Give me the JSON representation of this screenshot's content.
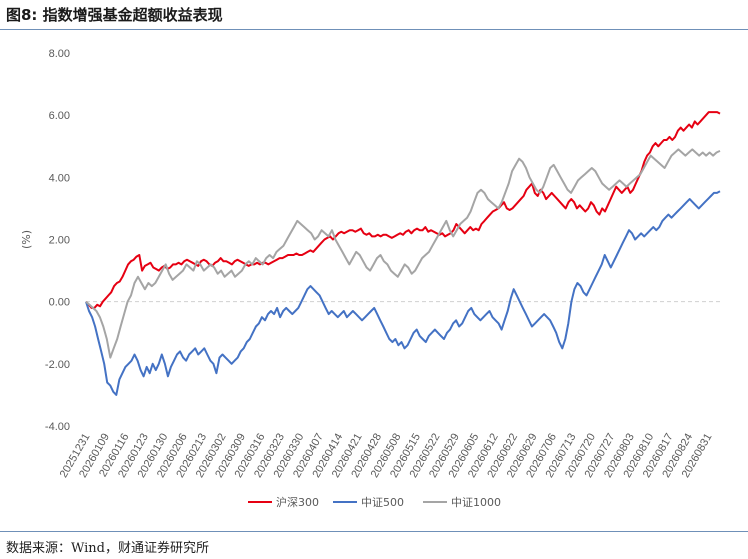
{
  "figure": {
    "title": "图8: 指数增强基金超额收益表现",
    "source": "数据来源：Wind，财通证券研究所"
  },
  "chart_data": {
    "type": "line",
    "ylabel": "(%)",
    "ylim": [
      -4,
      8
    ],
    "yticks": [
      "8.00",
      "6.00",
      "4.00",
      "2.00",
      "0.00",
      "-2.00",
      "-4.00"
    ],
    "ytick_values": [
      8,
      6,
      4,
      2,
      0,
      -2,
      -4
    ],
    "x_tick_labels": [
      "20251231",
      "20260109",
      "20260116",
      "20260123",
      "20260130",
      "20260206",
      "20260213",
      "20260302",
      "20260309",
      "20260316",
      "20260323",
      "20260330",
      "20260407",
      "20260414",
      "20260421",
      "20260428",
      "20260508",
      "20260515",
      "20260522",
      "20260529",
      "20260605",
      "20260612",
      "20260622",
      "20260629",
      "20260706",
      "20260713",
      "20260720",
      "20260727",
      "20260803",
      "20260810",
      "20260817",
      "20260824",
      "20260831"
    ],
    "grid": false,
    "zero_line": "dashed",
    "legend_position": "bottom",
    "series": [
      {
        "name": "沪深300",
        "color": "#e60012",
        "values": [
          0,
          -0.1,
          -0.2,
          -0.2,
          -0.1,
          -0.15,
          0,
          0.1,
          0.2,
          0.3,
          0.5,
          0.6,
          0.65,
          0.8,
          1.0,
          1.2,
          1.3,
          1.35,
          1.45,
          1.5,
          1.0,
          1.15,
          1.2,
          1.25,
          1.1,
          1.05,
          1.0,
          1.1,
          1.15,
          1.05,
          1.1,
          1.2,
          1.2,
          1.25,
          1.2,
          1.3,
          1.35,
          1.3,
          1.25,
          1.2,
          1.15,
          1.3,
          1.35,
          1.3,
          1.2,
          1.15,
          1.25,
          1.3,
          1.4,
          1.3,
          1.3,
          1.25,
          1.2,
          1.3,
          1.35,
          1.3,
          1.25,
          1.2,
          1.15,
          1.2,
          1.2,
          1.25,
          1.2,
          1.25,
          1.25,
          1.2,
          1.25,
          1.3,
          1.35,
          1.4,
          1.4,
          1.45,
          1.5,
          1.5,
          1.5,
          1.55,
          1.5,
          1.5,
          1.55,
          1.6,
          1.65,
          1.6,
          1.7,
          1.8,
          1.9,
          2.0,
          2.05,
          2.1,
          2.0,
          2.1,
          2.2,
          2.25,
          2.2,
          2.25,
          2.3,
          2.3,
          2.25,
          2.3,
          2.35,
          2.2,
          2.15,
          2.2,
          2.1,
          2.1,
          2.15,
          2.1,
          2.15,
          2.15,
          2.1,
          2.05,
          2.1,
          2.15,
          2.2,
          2.15,
          2.25,
          2.3,
          2.2,
          2.3,
          2.35,
          2.3,
          2.3,
          2.4,
          2.25,
          2.3,
          2.25,
          2.2,
          2.15,
          2.2,
          2.1,
          2.15,
          2.2,
          2.3,
          2.5,
          2.4,
          2.3,
          2.2,
          2.3,
          2.4,
          2.3,
          2.35,
          2.3,
          2.5,
          2.6,
          2.7,
          2.8,
          2.9,
          2.95,
          3.0,
          3.1,
          3.2,
          3.0,
          2.95,
          3.0,
          3.1,
          3.2,
          3.3,
          3.4,
          3.6,
          3.7,
          3.8,
          3.5,
          3.4,
          3.6,
          3.5,
          3.3,
          3.4,
          3.5,
          3.4,
          3.3,
          3.2,
          3.1,
          3.0,
          3.2,
          3.3,
          3.2,
          3.0,
          3.1,
          3.0,
          2.9,
          3.0,
          3.2,
          3.1,
          2.9,
          2.8,
          3.0,
          2.9,
          3.1,
          3.3,
          3.5,
          3.7,
          3.6,
          3.5,
          3.6,
          3.7,
          3.5,
          3.6,
          3.8,
          4.0,
          4.2,
          4.5,
          4.7,
          4.8,
          5.0,
          5.1,
          5.0,
          5.1,
          5.2,
          5.2,
          5.3,
          5.2,
          5.3,
          5.5,
          5.6,
          5.5,
          5.6,
          5.7,
          5.6,
          5.8,
          5.7,
          5.8,
          5.9,
          6.0,
          6.1,
          6.1,
          6.1,
          6.1,
          6.05
        ],
        "x_end": 224
      },
      {
        "name": "中证500",
        "color": "#4472c4",
        "values": [
          0,
          -0.3,
          -0.5,
          -0.8,
          -1.2,
          -1.6,
          -2.0,
          -2.6,
          -2.7,
          -2.9,
          -3.0,
          -2.5,
          -2.3,
          -2.1,
          -2.0,
          -1.9,
          -1.7,
          -1.9,
          -2.2,
          -2.4,
          -2.1,
          -2.3,
          -2.0,
          -2.2,
          -2.0,
          -1.7,
          -2.0,
          -2.4,
          -2.1,
          -1.9,
          -1.7,
          -1.6,
          -1.8,
          -1.9,
          -1.7,
          -1.6,
          -1.5,
          -1.7,
          -1.6,
          -1.5,
          -1.7,
          -1.9,
          -2.0,
          -2.3,
          -1.8,
          -1.7,
          -1.8,
          -1.9,
          -2.0,
          -1.9,
          -1.8,
          -1.6,
          -1.5,
          -1.3,
          -1.2,
          -1.0,
          -0.8,
          -0.7,
          -0.5,
          -0.6,
          -0.4,
          -0.3,
          -0.4,
          -0.2,
          -0.5,
          -0.3,
          -0.2,
          -0.3,
          -0.4,
          -0.3,
          -0.2,
          0,
          0.2,
          0.4,
          0.5,
          0.4,
          0.3,
          0.2,
          0,
          -0.2,
          -0.4,
          -0.3,
          -0.4,
          -0.5,
          -0.4,
          -0.3,
          -0.5,
          -0.4,
          -0.3,
          -0.4,
          -0.5,
          -0.6,
          -0.5,
          -0.4,
          -0.3,
          -0.2,
          -0.4,
          -0.6,
          -0.8,
          -1.0,
          -1.2,
          -1.3,
          -1.2,
          -1.4,
          -1.3,
          -1.5,
          -1.4,
          -1.2,
          -1.0,
          -0.9,
          -1.1,
          -1.2,
          -1.3,
          -1.1,
          -1.0,
          -0.9,
          -1.0,
          -1.1,
          -1.2,
          -1.0,
          -0.9,
          -0.7,
          -0.6,
          -0.8,
          -0.7,
          -0.5,
          -0.3,
          -0.2,
          -0.4,
          -0.5,
          -0.6,
          -0.5,
          -0.4,
          -0.3,
          -0.5,
          -0.6,
          -0.7,
          -0.9,
          -0.6,
          -0.3,
          0.1,
          0.4,
          0.2,
          0,
          -0.2,
          -0.4,
          -0.6,
          -0.8,
          -0.7,
          -0.6,
          -0.5,
          -0.4,
          -0.5,
          -0.6,
          -0.8,
          -1.0,
          -1.3,
          -1.5,
          -1.2,
          -0.7,
          0,
          0.4,
          0.6,
          0.5,
          0.3,
          0.2,
          0.4,
          0.6,
          0.8,
          1.0,
          1.2,
          1.5,
          1.3,
          1.1,
          1.3,
          1.5,
          1.7,
          1.9,
          2.1,
          2.3,
          2.2,
          2.0,
          2.1,
          2.2,
          2.1,
          2.2,
          2.3,
          2.4,
          2.3,
          2.4,
          2.6,
          2.7,
          2.8,
          2.7,
          2.8,
          2.9,
          3.0,
          3.1,
          3.2,
          3.3,
          3.2,
          3.1,
          3.0,
          3.1,
          3.2,
          3.3,
          3.4,
          3.5,
          3.5,
          3.55
        ],
        "x_end": 224
      },
      {
        "name": "中证1000",
        "color": "#a5a5a5",
        "values": [
          0,
          -0.1,
          -0.2,
          -0.3,
          -0.5,
          -0.8,
          -1.2,
          -1.8,
          -1.5,
          -1.2,
          -0.8,
          -0.4,
          0,
          0.2,
          0.6,
          0.8,
          0.6,
          0.4,
          0.6,
          0.5,
          0.6,
          0.8,
          1.0,
          1.2,
          0.9,
          0.7,
          0.8,
          0.9,
          1.0,
          1.2,
          1.1,
          1.0,
          1.3,
          1.2,
          1.0,
          1.1,
          1.2,
          1.1,
          0.9,
          1.0,
          0.8,
          0.9,
          1.0,
          0.8,
          0.9,
          1.0,
          1.2,
          1.3,
          1.2,
          1.4,
          1.3,
          1.2,
          1.4,
          1.5,
          1.4,
          1.6,
          1.7,
          1.8,
          2.0,
          2.2,
          2.4,
          2.6,
          2.5,
          2.4,
          2.3,
          2.2,
          2.0,
          2.1,
          2.3,
          2.2,
          2.1,
          2.3,
          2.0,
          1.8,
          1.6,
          1.4,
          1.2,
          1.4,
          1.6,
          1.5,
          1.3,
          1.1,
          1.0,
          1.2,
          1.4,
          1.5,
          1.3,
          1.2,
          1.0,
          0.9,
          0.8,
          1.0,
          1.2,
          1.1,
          0.9,
          1.0,
          1.2,
          1.4,
          1.5,
          1.6,
          1.8,
          2.0,
          2.2,
          2.4,
          2.6,
          2.3,
          2.1,
          2.3,
          2.5,
          2.6,
          2.7,
          2.9,
          3.2,
          3.5,
          3.6,
          3.5,
          3.3,
          3.2,
          3.1,
          3.0,
          3.2,
          3.5,
          3.8,
          4.2,
          4.4,
          4.6,
          4.5,
          4.3,
          4.0,
          3.8,
          3.6,
          3.5,
          3.7,
          4.0,
          4.3,
          4.4,
          4.2,
          4.0,
          3.8,
          3.6,
          3.5,
          3.7,
          3.9,
          4.0,
          4.1,
          4.2,
          4.3,
          4.2,
          4.0,
          3.8,
          3.7,
          3.6,
          3.7,
          3.8,
          3.9,
          3.8,
          3.7,
          3.8,
          3.9,
          4.0,
          4.1,
          4.3,
          4.5,
          4.7,
          4.6,
          4.5,
          4.4,
          4.3,
          4.5,
          4.7,
          4.8,
          4.9,
          4.8,
          4.7,
          4.8,
          4.9,
          4.8,
          4.7,
          4.8,
          4.7,
          4.8,
          4.7,
          4.8,
          4.85
        ],
        "x_end": 224
      }
    ]
  }
}
